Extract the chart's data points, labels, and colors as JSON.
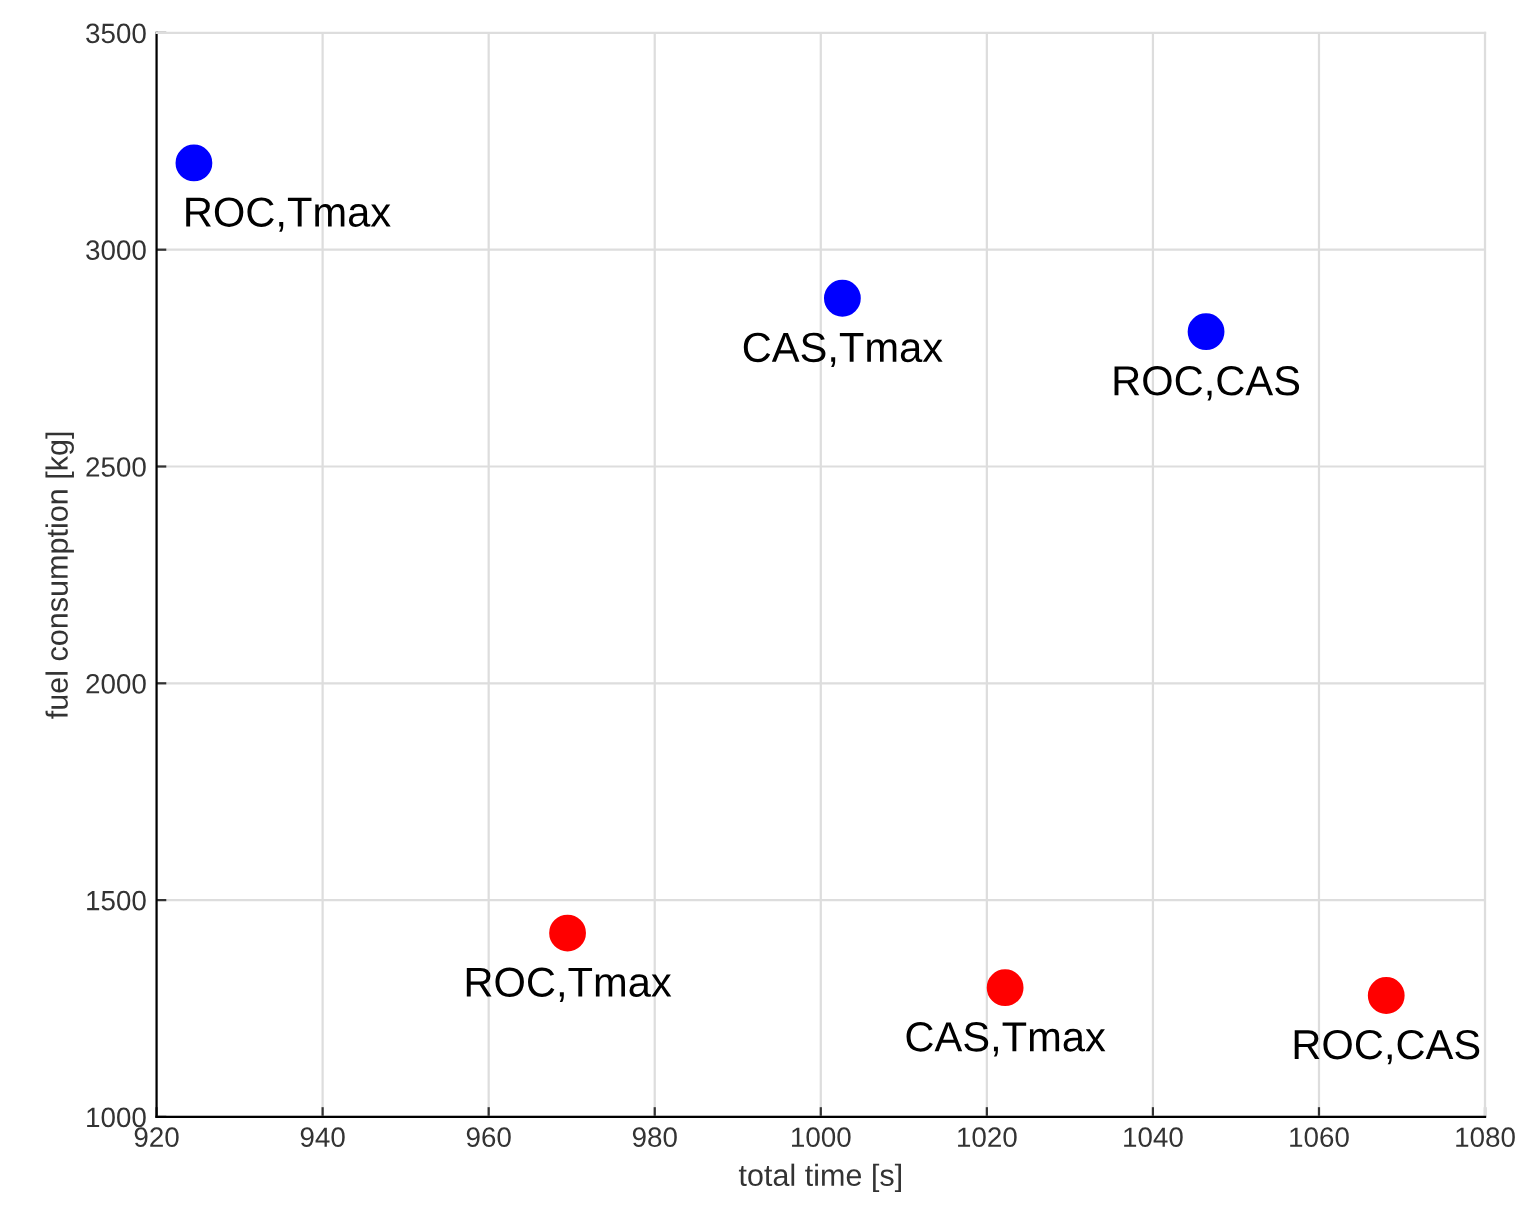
{
  "chart_data": {
    "type": "scatter",
    "xlabel": "total time [s]",
    "ylabel": "fuel consumption [kg]",
    "series": [
      {
        "color": "#ff0000",
        "x": [
          969.5,
          1022.2,
          1068.1
        ],
        "values": [
          1424,
          1298,
          1280
        ]
      },
      {
        "color": "#0000ff",
        "x": [
          924.5,
          1002.6,
          1046.4
        ],
        "values": [
          3200,
          2888,
          2811
        ]
      }
    ],
    "annotations": [
      {
        "text": "ROC,Tmax",
        "x": 969.5,
        "y": 1424
      },
      {
        "text": "CAS,Tmax",
        "x": 1022.2,
        "y": 1298
      },
      {
        "text": "ROC,CAS",
        "x": 1068.1,
        "y": 1280
      },
      {
        "text": "ROC,Tmax",
        "x": 924.5,
        "y": 3200
      },
      {
        "text": "CAS,Tmax",
        "x": 1002.6,
        "y": 2888
      },
      {
        "text": "ROC,CAS",
        "x": 1046.4,
        "y": 2811
      }
    ],
    "xlim": [
      920,
      1080
    ],
    "ylim": [
      1000,
      3500
    ],
    "xticks": [
      920,
      940,
      960,
      980,
      1000,
      1020,
      1040,
      1060,
      1080
    ],
    "yticks": [
      1000,
      1500,
      2000,
      2500,
      3000,
      3500
    ],
    "grid": true,
    "marker": "circle"
  }
}
